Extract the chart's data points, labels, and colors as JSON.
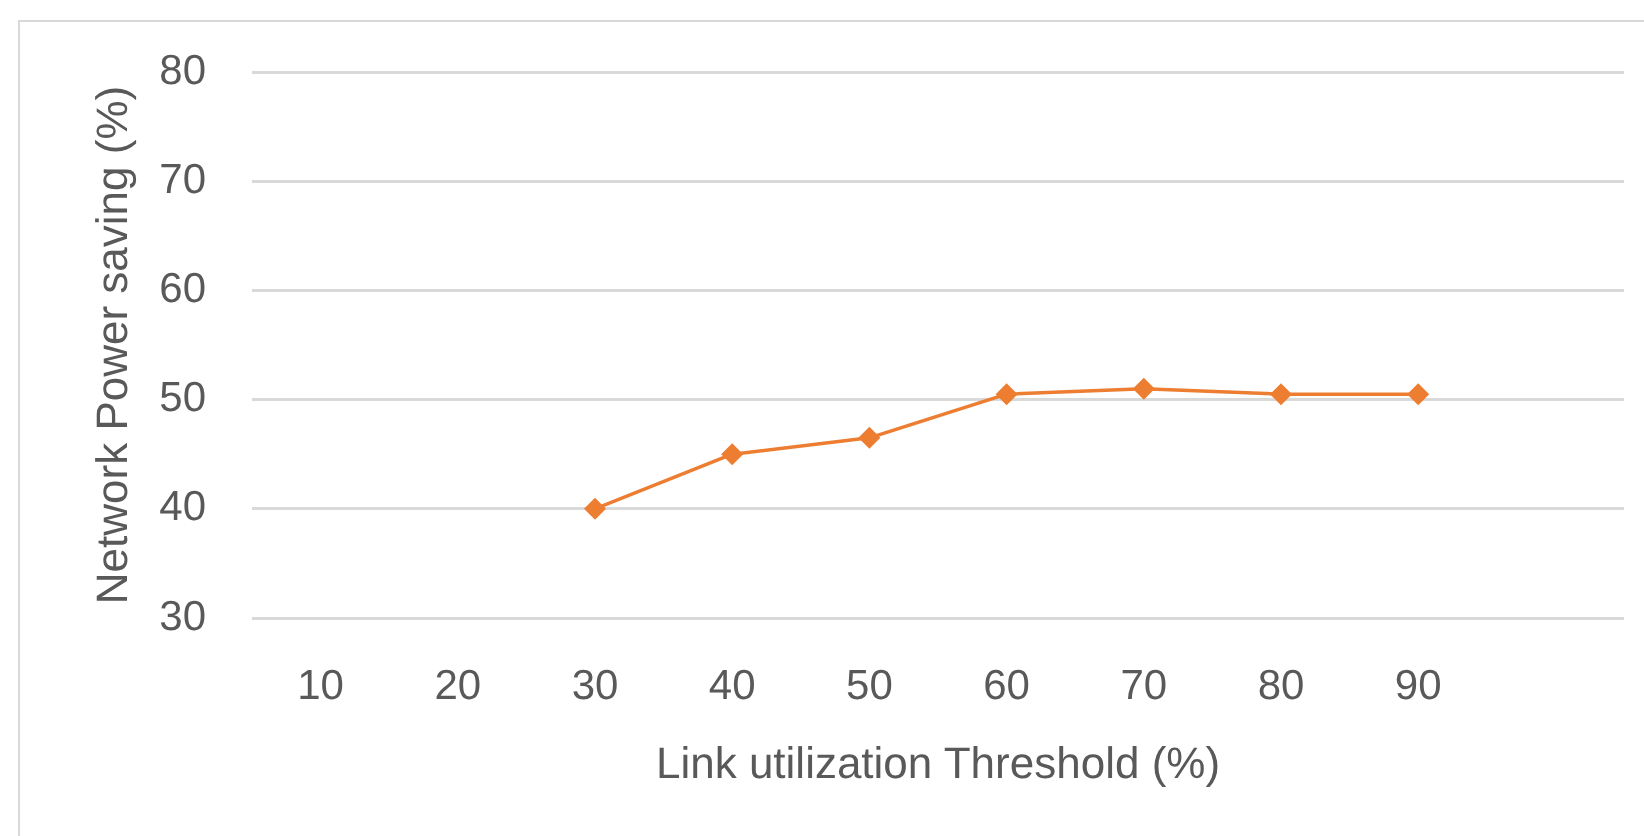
{
  "chart_data": {
    "type": "line",
    "xlabel": "Link utilization Threshold (%)",
    "ylabel": "Network Power saving (%)",
    "categories": [
      "10",
      "20",
      "30",
      "40",
      "50",
      "60",
      "70",
      "80",
      "90",
      null
    ],
    "values": [
      null,
      null,
      40,
      45,
      46.5,
      50.5,
      51,
      50.5,
      50.5,
      null
    ],
    "color": "#ed7d31",
    "ylim": [
      30,
      80
    ],
    "yticks": [
      30,
      40,
      50,
      60,
      70,
      80
    ],
    "grid": "y",
    "marker": "diamond",
    "line_style": "solid"
  }
}
